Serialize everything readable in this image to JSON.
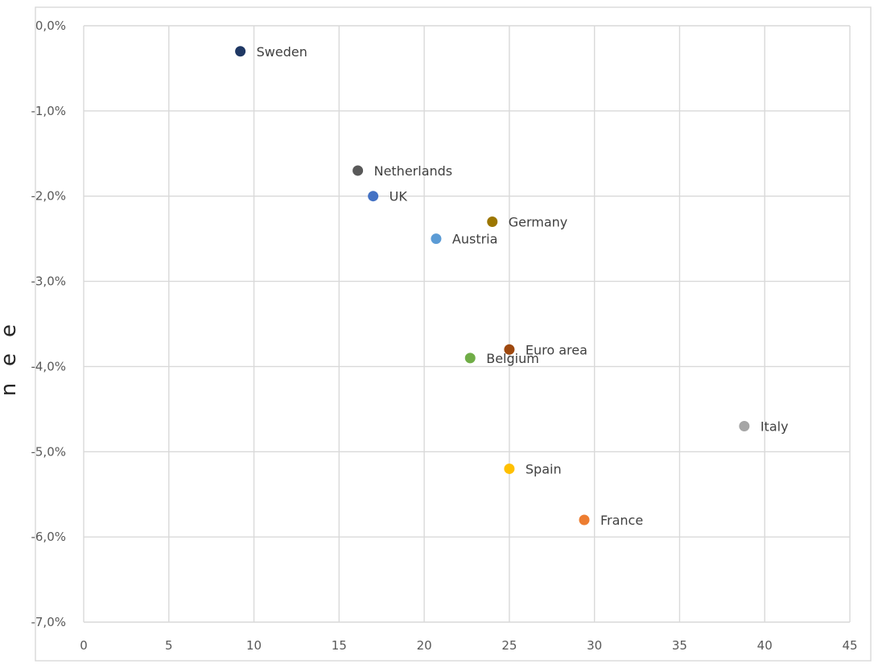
{
  "chart_data": {
    "type": "scatter",
    "title": "",
    "xlabel": "",
    "ylabel_fragments": [
      "e",
      "e",
      "n"
    ],
    "xlim": [
      0,
      45
    ],
    "ylim": [
      -7.0,
      0.0
    ],
    "x_ticks": [
      0,
      5,
      10,
      15,
      20,
      25,
      30,
      35,
      40,
      45
    ],
    "y_ticks": [
      0.0,
      -1.0,
      -2.0,
      -3.0,
      -4.0,
      -5.0,
      -6.0,
      -7.0
    ],
    "x_tick_labels": [
      "0",
      "5",
      "10",
      "15",
      "20",
      "25",
      "30",
      "35",
      "40",
      "45"
    ],
    "y_tick_labels": [
      "0,0%",
      "-1,0%",
      "-2,0%",
      "-3,0%",
      "-4,0%",
      "-5,0%",
      "-6,0%",
      "-7,0%"
    ],
    "grid": true,
    "legend": "none",
    "points": [
      {
        "label": "Sweden",
        "x": 9.2,
        "y": -0.3,
        "color": "#1f3864"
      },
      {
        "label": "Netherlands",
        "x": 16.1,
        "y": -1.7,
        "color": "#595959"
      },
      {
        "label": "UK",
        "x": 17.0,
        "y": -2.0,
        "color": "#4472c4"
      },
      {
        "label": "Germany",
        "x": 24.0,
        "y": -2.3,
        "color": "#9c7600"
      },
      {
        "label": "Austria",
        "x": 20.7,
        "y": -2.5,
        "color": "#5b9bd5"
      },
      {
        "label": "Euro area",
        "x": 25.0,
        "y": -3.8,
        "color": "#9e480e"
      },
      {
        "label": "Belgium",
        "x": 22.7,
        "y": -3.9,
        "color": "#70ad47"
      },
      {
        "label": "Italy",
        "x": 38.8,
        "y": -4.7,
        "color": "#a5a5a5"
      },
      {
        "label": "Spain",
        "x": 25.0,
        "y": -5.2,
        "color": "#ffc000"
      },
      {
        "label": "France",
        "x": 29.4,
        "y": -5.8,
        "color": "#ed7d31"
      }
    ]
  }
}
